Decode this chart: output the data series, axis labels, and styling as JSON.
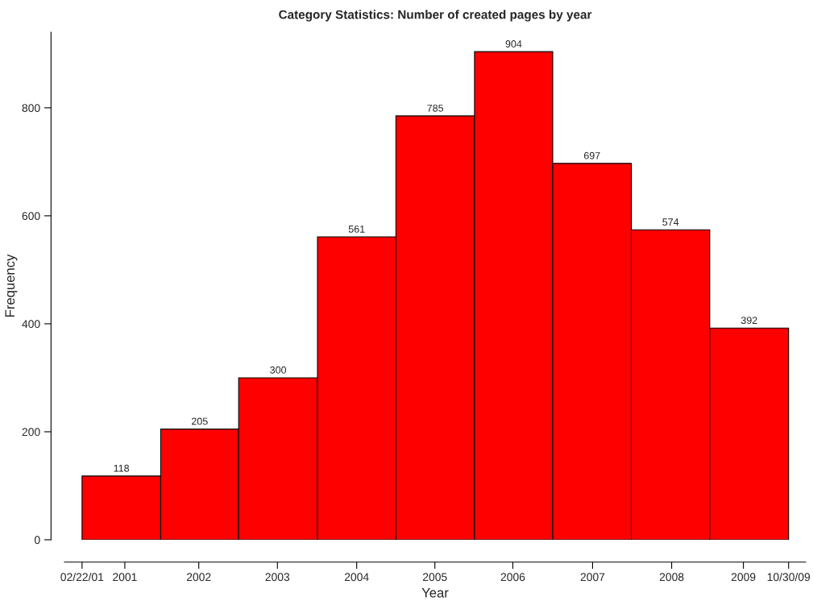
{
  "chart_data": {
    "type": "histogram",
    "title": "Category Statistics: Number of created pages by year",
    "xlabel": "Year",
    "ylabel": "Frequency",
    "bins": [
      "2001-02-22",
      "2002-02-10",
      "2003-01-26",
      "2004-01-15",
      "2005-01-01",
      "2005-12-20",
      "2006-12-06",
      "2007-11-24",
      "2008-11-10",
      "2009-10-30"
    ],
    "values": [
      118,
      205,
      300,
      561,
      785,
      904,
      697,
      574,
      392
    ],
    "color": "#ff0000",
    "data_labels": true,
    "xlim": [
      "2000-12-05",
      "2010-01-15"
    ],
    "ylim": [
      0,
      940
    ],
    "xticks": [
      {
        "value": "2001-02-22",
        "label": "02/22/01"
      },
      {
        "value": "2001-09-02",
        "label": "2001"
      },
      {
        "value": "2002-07-31",
        "label": "2002"
      },
      {
        "value": "2003-07-19",
        "label": "2003"
      },
      {
        "value": "2004-07-09",
        "label": "2004"
      },
      {
        "value": "2005-06-25",
        "label": "2005"
      },
      {
        "value": "2006-06-10",
        "label": "2006"
      },
      {
        "value": "2007-06-03",
        "label": "2007"
      },
      {
        "value": "2008-05-23",
        "label": "2008"
      },
      {
        "value": "2009-04-10",
        "label": "2009"
      },
      {
        "value": "2009-10-30",
        "label": "10/30/09"
      }
    ],
    "yticks": [
      0,
      200,
      400,
      600,
      800
    ]
  }
}
